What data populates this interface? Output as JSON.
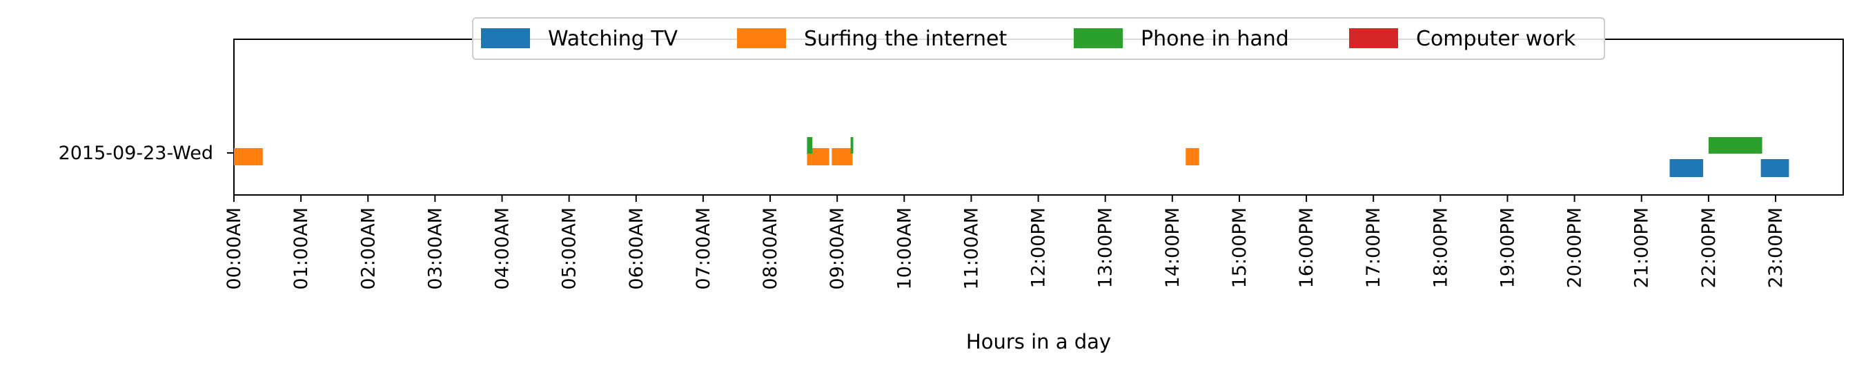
{
  "chart_data": {
    "type": "bar",
    "orientation": "horizontal-timeline",
    "title": "",
    "xlabel": "Hours in a day",
    "ylabel": "",
    "xlim": [
      0,
      24
    ],
    "categories": [
      "2015-09-23-Wed"
    ],
    "x_ticks": [
      0,
      1,
      2,
      3,
      4,
      5,
      6,
      7,
      8,
      9,
      10,
      11,
      12,
      13,
      14,
      15,
      16,
      17,
      18,
      19,
      20,
      21,
      22,
      23
    ],
    "x_tick_labels": [
      "00:00AM",
      "01:00AM",
      "02:00AM",
      "03:00AM",
      "04:00AM",
      "05:00AM",
      "06:00AM",
      "07:00AM",
      "08:00AM",
      "09:00AM",
      "10:00AM",
      "11:00AM",
      "12:00PM",
      "13:00PM",
      "14:00PM",
      "15:00PM",
      "16:00PM",
      "17:00PM",
      "18:00PM",
      "19:00PM",
      "20:00PM",
      "21:00PM",
      "22:00PM",
      "23:00PM"
    ],
    "grid": false,
    "legend_position": "top-center",
    "series": [
      {
        "name": "Watching TV",
        "color": "#1f77b4",
        "intervals": [
          [
            21.42,
            21.92
          ],
          [
            22.78,
            23.2
          ]
        ]
      },
      {
        "name": "Surfing the internet",
        "color": "#ff7f0e",
        "intervals": [
          [
            0.0,
            0.43
          ],
          [
            8.55,
            8.88
          ],
          [
            8.92,
            9.23
          ],
          [
            14.2,
            14.4
          ]
        ]
      },
      {
        "name": "Phone in hand",
        "color": "#2ca02c",
        "intervals": [
          [
            8.55,
            8.63
          ],
          [
            9.2,
            9.24
          ],
          [
            22.0,
            22.8
          ]
        ]
      },
      {
        "name": "Computer work",
        "color": "#d62728",
        "intervals": []
      }
    ]
  }
}
